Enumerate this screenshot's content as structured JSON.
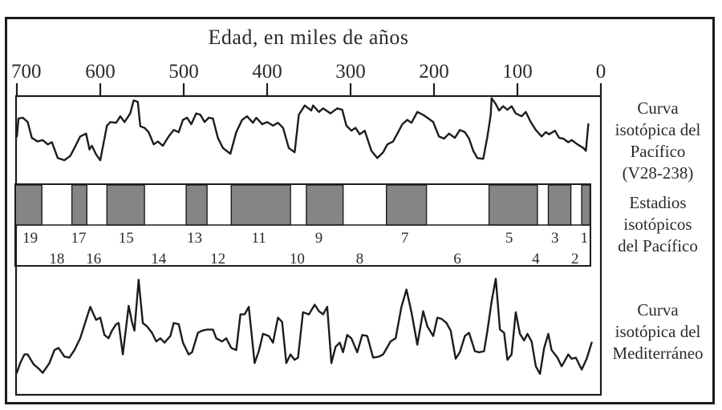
{
  "axis": {
    "title": "Edad, en miles de años",
    "ticks": [
      700,
      600,
      500,
      400,
      300,
      200,
      100,
      0
    ]
  },
  "labels": {
    "pacific": [
      "Curva",
      "isotópica del",
      "Pacífico",
      "(V28-238)"
    ],
    "estadios": [
      "Estadios",
      "isotópicos",
      "del Pacífico"
    ],
    "mediterraneo": [
      "Curva",
      "isotópica del",
      "Mediterráneo"
    ]
  },
  "colors": {
    "background": "#ffffff",
    "line": "#1c1c1c",
    "text": "#2b2b2b",
    "stage_fill": "#858585"
  },
  "chart_data": [
    {
      "type": "line",
      "name": "Curva isotópica del Pacífico (V28-238)",
      "xlabel": "Edad, en miles de años",
      "x_axis": {
        "range": [
          700,
          0
        ],
        "ticks": [
          700,
          600,
          500,
          400,
          300,
          200,
          100,
          0
        ],
        "unit": "miles de años"
      },
      "y_axis": {
        "range": [
          0,
          1
        ],
        "note": "normalized depth below panel top, no scale shown in figure"
      },
      "points": [
        [
          700,
          0.56
        ],
        [
          698,
          0.31
        ],
        [
          693,
          0.3
        ],
        [
          687,
          0.36
        ],
        [
          682,
          0.58
        ],
        [
          675,
          0.63
        ],
        [
          669,
          0.61
        ],
        [
          663,
          0.67
        ],
        [
          658,
          0.64
        ],
        [
          651,
          0.86
        ],
        [
          643,
          0.89
        ],
        [
          636,
          0.83
        ],
        [
          631,
          0.72
        ],
        [
          624,
          0.56
        ],
        [
          617,
          0.52
        ],
        [
          613,
          0.74
        ],
        [
          610,
          0.69
        ],
        [
          605,
          0.81
        ],
        [
          600,
          0.89
        ],
        [
          592,
          0.41
        ],
        [
          588,
          0.36
        ],
        [
          581,
          0.37
        ],
        [
          576,
          0.28
        ],
        [
          571,
          0.36
        ],
        [
          564,
          0.24
        ],
        [
          560,
          0.06
        ],
        [
          555,
          0.08
        ],
        [
          552,
          0.42
        ],
        [
          547,
          0.44
        ],
        [
          542,
          0.5
        ],
        [
          536,
          0.67
        ],
        [
          531,
          0.63
        ],
        [
          525,
          0.69
        ],
        [
          518,
          0.56
        ],
        [
          512,
          0.47
        ],
        [
          506,
          0.5
        ],
        [
          501,
          0.33
        ],
        [
          496,
          0.3
        ],
        [
          491,
          0.39
        ],
        [
          485,
          0.24
        ],
        [
          480,
          0.26
        ],
        [
          475,
          0.36
        ],
        [
          470,
          0.3
        ],
        [
          465,
          0.31
        ],
        [
          459,
          0.58
        ],
        [
          453,
          0.72
        ],
        [
          444,
          0.8
        ],
        [
          437,
          0.5
        ],
        [
          430,
          0.33
        ],
        [
          424,
          0.28
        ],
        [
          417,
          0.37
        ],
        [
          413,
          0.3
        ],
        [
          406,
          0.39
        ],
        [
          400,
          0.36
        ],
        [
          393,
          0.41
        ],
        [
          387,
          0.37
        ],
        [
          381,
          0.44
        ],
        [
          374,
          0.72
        ],
        [
          367,
          0.78
        ],
        [
          362,
          0.26
        ],
        [
          355,
          0.13
        ],
        [
          347,
          0.2
        ],
        [
          345,
          0.13
        ],
        [
          338,
          0.22
        ],
        [
          333,
          0.17
        ],
        [
          324,
          0.24
        ],
        [
          316,
          0.17
        ],
        [
          310,
          0.19
        ],
        [
          305,
          0.41
        ],
        [
          299,
          0.48
        ],
        [
          294,
          0.44
        ],
        [
          289,
          0.53
        ],
        [
          283,
          0.48
        ],
        [
          275,
          0.76
        ],
        [
          268,
          0.86
        ],
        [
          261,
          0.78
        ],
        [
          256,
          0.67
        ],
        [
          249,
          0.63
        ],
        [
          242,
          0.48
        ],
        [
          238,
          0.39
        ],
        [
          232,
          0.33
        ],
        [
          227,
          0.37
        ],
        [
          220,
          0.22
        ],
        [
          213,
          0.26
        ],
        [
          208,
          0.3
        ],
        [
          201,
          0.36
        ],
        [
          194,
          0.56
        ],
        [
          188,
          0.59
        ],
        [
          182,
          0.52
        ],
        [
          175,
          0.58
        ],
        [
          169,
          0.47
        ],
        [
          163,
          0.5
        ],
        [
          158,
          0.59
        ],
        [
          153,
          0.76
        ],
        [
          148,
          0.86
        ],
        [
          141,
          0.87
        ],
        [
          136,
          0.56
        ],
        [
          132,
          0.26
        ],
        [
          131,
          0.03
        ],
        [
          126,
          0.11
        ],
        [
          122,
          0.2
        ],
        [
          117,
          0.14
        ],
        [
          112,
          0.19
        ],
        [
          107,
          0.14
        ],
        [
          102,
          0.24
        ],
        [
          95,
          0.28
        ],
        [
          90,
          0.22
        ],
        [
          84,
          0.36
        ],
        [
          78,
          0.47
        ],
        [
          71,
          0.56
        ],
        [
          66,
          0.5
        ],
        [
          62,
          0.53
        ],
        [
          55,
          0.48
        ],
        [
          50,
          0.58
        ],
        [
          45,
          0.59
        ],
        [
          39,
          0.64
        ],
        [
          35,
          0.61
        ],
        [
          28,
          0.67
        ],
        [
          21,
          0.72
        ],
        [
          18,
          0.76
        ],
        [
          15,
          0.39
        ]
      ]
    },
    {
      "type": "bar",
      "name": "Estadios isotópicos del Pacífico",
      "note": "horizontal band of marine isotope stages; odd stages shaded gray, even stages white",
      "x_axis": {
        "range": [
          700,
          0
        ],
        "unit": "miles de años"
      },
      "stages": [
        {
          "stage": 19,
          "from": 702,
          "to": 670,
          "shaded": true,
          "label_age": 684
        },
        {
          "stage": 18,
          "from": 670,
          "to": 634,
          "shaded": false,
          "label_age": 652
        },
        {
          "stage": 17,
          "from": 634,
          "to": 616,
          "shaded": true,
          "label_age": 626
        },
        {
          "stage": 16,
          "from": 616,
          "to": 592,
          "shaded": false,
          "label_age": 608
        },
        {
          "stage": 15,
          "from": 592,
          "to": 547,
          "shaded": true,
          "label_age": 569
        },
        {
          "stage": 14,
          "from": 547,
          "to": 497,
          "shaded": false,
          "label_age": 530
        },
        {
          "stage": 13,
          "from": 497,
          "to": 472,
          "shaded": true,
          "label_age": 487
        },
        {
          "stage": 12,
          "from": 472,
          "to": 443,
          "shaded": false,
          "label_age": 459
        },
        {
          "stage": 11,
          "from": 443,
          "to": 372,
          "shaded": true,
          "label_age": 410
        },
        {
          "stage": 10,
          "from": 372,
          "to": 353,
          "shaded": false,
          "label_age": 364
        },
        {
          "stage": 9,
          "from": 353,
          "to": 309,
          "shaded": true,
          "label_age": 338
        },
        {
          "stage": 8,
          "from": 309,
          "to": 257,
          "shaded": false,
          "label_age": 289
        },
        {
          "stage": 7,
          "from": 257,
          "to": 209,
          "shaded": true,
          "label_age": 235
        },
        {
          "stage": 6,
          "from": 209,
          "to": 134,
          "shaded": false,
          "label_age": 172
        },
        {
          "stage": 5,
          "from": 134,
          "to": 76,
          "shaded": true,
          "label_age": 110
        },
        {
          "stage": 4,
          "from": 76,
          "to": 63,
          "shaded": false,
          "label_age": 78
        },
        {
          "stage": 3,
          "from": 63,
          "to": 36,
          "shaded": true,
          "label_age": 55
        },
        {
          "stage": 2,
          "from": 36,
          "to": 23,
          "shaded": false,
          "label_age": 31
        },
        {
          "stage": 1,
          "from": 23,
          "to": 13,
          "shaded": true,
          "label_age": 20
        }
      ]
    },
    {
      "type": "line",
      "name": "Curva isotópica del Mediterráneo",
      "xlabel": "Edad, en miles de años",
      "x_axis": {
        "range": [
          700,
          0
        ],
        "unit": "miles de años"
      },
      "y_axis": {
        "range": [
          0,
          1
        ],
        "note": "normalized depth below panel top, no scale shown in figure"
      },
      "points": [
        [
          700,
          0.93
        ],
        [
          696,
          0.84
        ],
        [
          691,
          0.76
        ],
        [
          687,
          0.76
        ],
        [
          680,
          0.85
        ],
        [
          674,
          0.89
        ],
        [
          669,
          0.93
        ],
        [
          661,
          0.84
        ],
        [
          655,
          0.72
        ],
        [
          650,
          0.7
        ],
        [
          643,
          0.78
        ],
        [
          637,
          0.79
        ],
        [
          631,
          0.72
        ],
        [
          624,
          0.61
        ],
        [
          617,
          0.44
        ],
        [
          612,
          0.32
        ],
        [
          605,
          0.44
        ],
        [
          600,
          0.42
        ],
        [
          595,
          0.58
        ],
        [
          590,
          0.61
        ],
        [
          586,
          0.54
        ],
        [
          581,
          0.48
        ],
        [
          578,
          0.47
        ],
        [
          573,
          0.76
        ],
        [
          566,
          0.31
        ],
        [
          562,
          0.46
        ],
        [
          559,
          0.54
        ],
        [
          554,
          0.07
        ],
        [
          549,
          0.47
        ],
        [
          544,
          0.5
        ],
        [
          538,
          0.56
        ],
        [
          533,
          0.64
        ],
        [
          528,
          0.61
        ],
        [
          523,
          0.65
        ],
        [
          516,
          0.59
        ],
        [
          512,
          0.47
        ],
        [
          506,
          0.48
        ],
        [
          501,
          0.65
        ],
        [
          494,
          0.76
        ],
        [
          490,
          0.74
        ],
        [
          483,
          0.56
        ],
        [
          478,
          0.54
        ],
        [
          472,
          0.53
        ],
        [
          465,
          0.53
        ],
        [
          461,
          0.61
        ],
        [
          454,
          0.64
        ],
        [
          449,
          0.61
        ],
        [
          443,
          0.7
        ],
        [
          437,
          0.72
        ],
        [
          432,
          0.39
        ],
        [
          427,
          0.39
        ],
        [
          422,
          0.32
        ],
        [
          415,
          0.84
        ],
        [
          410,
          0.73
        ],
        [
          405,
          0.57
        ],
        [
          398,
          0.59
        ],
        [
          393,
          0.65
        ],
        [
          387,
          0.42
        ],
        [
          382,
          0.46
        ],
        [
          377,
          0.84
        ],
        [
          372,
          0.76
        ],
        [
          367,
          0.81
        ],
        [
          363,
          0.79
        ],
        [
          357,
          0.37
        ],
        [
          350,
          0.39
        ],
        [
          343,
          0.3
        ],
        [
          338,
          0.36
        ],
        [
          333,
          0.39
        ],
        [
          328,
          0.32
        ],
        [
          323,
          0.84
        ],
        [
          318,
          0.69
        ],
        [
          313,
          0.65
        ],
        [
          309,
          0.74
        ],
        [
          304,
          0.58
        ],
        [
          299,
          0.61
        ],
        [
          292,
          0.74
        ],
        [
          286,
          0.58
        ],
        [
          280,
          0.59
        ],
        [
          273,
          0.79
        ],
        [
          266,
          0.78
        ],
        [
          261,
          0.76
        ],
        [
          252,
          0.64
        ],
        [
          246,
          0.61
        ],
        [
          239,
          0.32
        ],
        [
          233,
          0.16
        ],
        [
          227,
          0.37
        ],
        [
          220,
          0.67
        ],
        [
          213,
          0.36
        ],
        [
          208,
          0.5
        ],
        [
          201,
          0.59
        ],
        [
          196,
          0.42
        ],
        [
          191,
          0.43
        ],
        [
          185,
          0.47
        ],
        [
          180,
          0.54
        ],
        [
          174,
          0.8
        ],
        [
          169,
          0.74
        ],
        [
          163,
          0.59
        ],
        [
          158,
          0.56
        ],
        [
          151,
          0.73
        ],
        [
          146,
          0.74
        ],
        [
          140,
          0.73
        ],
        [
          136,
          0.54
        ],
        [
          131,
          0.27
        ],
        [
          126,
          0.06
        ],
        [
          121,
          0.53
        ],
        [
          116,
          0.56
        ],
        [
          112,
          0.81
        ],
        [
          107,
          0.76
        ],
        [
          102,
          0.37
        ],
        [
          97,
          0.57
        ],
        [
          92,
          0.63
        ],
        [
          88,
          0.57
        ],
        [
          83,
          0.64
        ],
        [
          78,
          0.87
        ],
        [
          73,
          0.94
        ],
        [
          68,
          0.7
        ],
        [
          63,
          0.57
        ],
        [
          59,
          0.72
        ],
        [
          52,
          0.79
        ],
        [
          47,
          0.87
        ],
        [
          44,
          0.83
        ],
        [
          39,
          0.76
        ],
        [
          35,
          0.8
        ],
        [
          30,
          0.79
        ],
        [
          23,
          0.9
        ],
        [
          17,
          0.8
        ],
        [
          11,
          0.65
        ]
      ]
    }
  ]
}
